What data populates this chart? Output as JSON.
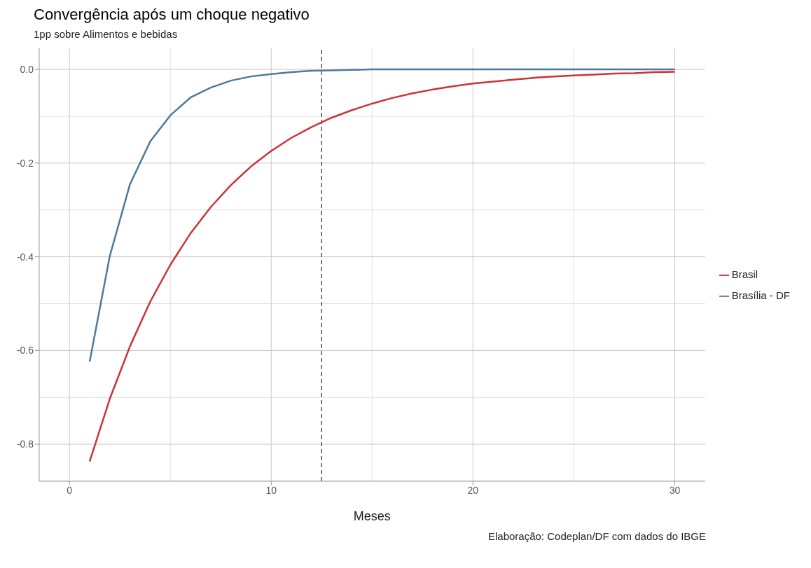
{
  "chart_data": {
    "type": "line",
    "title": "Convergência após um choque negativo",
    "subtitle": "1pp sobre Alimentos e bebidas",
    "xlabel": "Meses",
    "annotations": [
      "Elaboração: Codeplan/DF com dados do IBGE"
    ],
    "x": [
      1,
      2,
      3,
      4,
      5,
      6,
      7,
      8,
      9,
      10,
      11,
      12,
      13,
      14,
      15,
      16,
      17,
      18,
      19,
      20,
      21,
      22,
      23,
      24,
      25,
      26,
      27,
      28,
      29,
      30
    ],
    "series": [
      {
        "name": "Brasil",
        "color": "#cd3237",
        "values": [
          -0.837,
          -0.703,
          -0.591,
          -0.496,
          -0.417,
          -0.35,
          -0.294,
          -0.247,
          -0.207,
          -0.174,
          -0.146,
          -0.123,
          -0.103,
          -0.087,
          -0.073,
          -0.061,
          -0.051,
          -0.043,
          -0.036,
          -0.03,
          -0.026,
          -0.022,
          -0.018,
          -0.015,
          -0.013,
          -0.011,
          -0.009,
          -0.008,
          -0.006,
          -0.005
        ]
      },
      {
        "name": "Brasília - DF",
        "color": "#4d7a9c",
        "values": [
          -0.624,
          -0.398,
          -0.245,
          -0.154,
          -0.098,
          -0.06,
          -0.039,
          -0.024,
          -0.015,
          -0.01,
          -0.006,
          -0.003,
          -0.002,
          -0.001,
          0,
          0,
          0,
          0,
          0,
          0,
          0,
          0,
          0,
          0,
          0,
          0,
          0,
          0,
          0,
          0
        ]
      }
    ],
    "xlim": [
      -1.5,
      31.5
    ],
    "xticks": [
      0,
      10,
      20,
      30
    ],
    "ylim": [
      -0.879,
      0.045
    ],
    "yticks": [
      {
        "value": -0.8,
        "label": "-0.8"
      },
      {
        "value": -0.6,
        "label": "-0.6"
      },
      {
        "value": -0.4,
        "label": "-0.4"
      },
      {
        "value": -0.2,
        "label": "-0.2"
      },
      {
        "value": 0,
        "label": "0.0"
      }
    ],
    "ref_lines": [
      {
        "axis": "x",
        "value": 12.5,
        "color": "#000000",
        "line_style": "dashed"
      }
    ],
    "grid": true,
    "legend": "right",
    "marker": "none",
    "line_style": "solid"
  }
}
